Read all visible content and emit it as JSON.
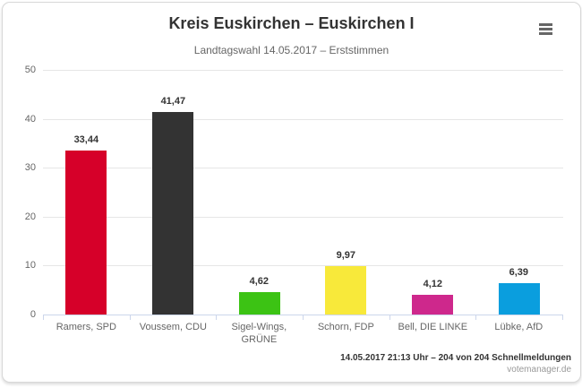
{
  "chart_data": {
    "type": "bar",
    "title": "Kreis Euskirchen – Euskirchen I",
    "subtitle": "Landtagswahl 14.05.2017 – Erststimmen",
    "categories": [
      "Ramers, SPD",
      "Voussem, CDU",
      "Sigel-Wings, GRÜNE",
      "Schorn, FDP",
      "Bell, DIE LINKE",
      "Lübke, AfD"
    ],
    "values": [
      33.44,
      41.47,
      4.62,
      9.97,
      4.12,
      6.39
    ],
    "value_labels": [
      "33,44",
      "41,47",
      "4,62",
      "9,97",
      "4,12",
      "6,39"
    ],
    "colors": [
      "#d60029",
      "#333333",
      "#3cc314",
      "#f8e93a",
      "#ce288c",
      "#0a9ede"
    ],
    "ylim": [
      0,
      50
    ],
    "yticks": [
      0,
      10,
      20,
      30,
      40,
      50
    ],
    "xlabel": "",
    "ylabel": "",
    "grid": true,
    "legend": false
  },
  "menu": {
    "icon": "hamburger-icon"
  },
  "credits": {
    "line1": "14.05.2017 21:13 Uhr – 204 von 204 Schnellmeldungen",
    "line2": "votemanager.de"
  }
}
